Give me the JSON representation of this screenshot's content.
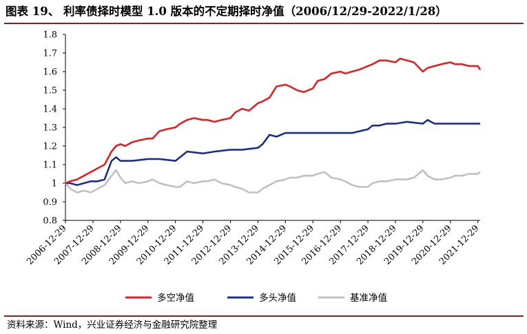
{
  "title": "图表 19、 利率债择时模型 1.0 版本的不定期择时净值（2006/12/29-2022/1/28）",
  "source": "资料来源：Wind，兴业证券经济与金融研究院整理",
  "chart_data": {
    "type": "line",
    "title": "图表 19、 利率债择时模型 1.0 版本的不定期择时净值（2006/12/29-2022/1/28）",
    "xlabel": "",
    "ylabel": "",
    "ylim": [
      0.8,
      1.8
    ],
    "yticks": [
      "0.8",
      "0.9",
      "1",
      "1.1",
      "1.2",
      "1.3",
      "1.4",
      "1.5",
      "1.6",
      "1.7",
      "1.8"
    ],
    "xlim": [
      "2006-12-29",
      "2022-01-28"
    ],
    "xticks": [
      "2006-12-29",
      "2007-12-29",
      "2008-12-29",
      "2009-12-29",
      "2010-12-29",
      "2011-12-29",
      "2012-12-29",
      "2013-12-29",
      "2014-12-29",
      "2015-12-29",
      "2016-12-29",
      "2017-12-29",
      "2018-12-29",
      "2019-12-29",
      "2020-12-29",
      "2021-12-29"
    ],
    "legend_position": "bottom",
    "grid": false,
    "series": [
      {
        "name": "多空净值",
        "color": "#e02020",
        "x": [
          "2006-12-29",
          "2007-03-01",
          "2007-06-01",
          "2007-09-01",
          "2007-12-01",
          "2008-03-01",
          "2008-06-01",
          "2008-09-01",
          "2008-11-01",
          "2008-12-29",
          "2009-03-01",
          "2009-06-01",
          "2009-09-01",
          "2009-12-29",
          "2010-03-01",
          "2010-06-01",
          "2010-09-01",
          "2010-12-29",
          "2011-03-01",
          "2011-06-01",
          "2011-09-01",
          "2011-12-29",
          "2012-03-01",
          "2012-06-01",
          "2012-09-01",
          "2012-12-29",
          "2013-03-01",
          "2013-06-01",
          "2013-09-01",
          "2013-12-29",
          "2014-03-01",
          "2014-06-01",
          "2014-09-01",
          "2014-12-29",
          "2015-03-01",
          "2015-06-01",
          "2015-09-01",
          "2015-12-29",
          "2016-03-01",
          "2016-06-01",
          "2016-09-01",
          "2016-12-29",
          "2017-03-01",
          "2017-06-01",
          "2017-09-01",
          "2017-12-29",
          "2018-03-01",
          "2018-06-01",
          "2018-09-01",
          "2018-12-29",
          "2019-03-01",
          "2019-06-01",
          "2019-09-01",
          "2019-12-29",
          "2020-03-01",
          "2020-06-01",
          "2020-09-01",
          "2020-12-29",
          "2021-03-01",
          "2021-06-01",
          "2021-09-01",
          "2021-12-29",
          "2022-01-28"
        ],
        "y": [
          1.0,
          1.01,
          1.02,
          1.04,
          1.06,
          1.08,
          1.1,
          1.17,
          1.2,
          1.21,
          1.2,
          1.22,
          1.23,
          1.24,
          1.24,
          1.28,
          1.29,
          1.3,
          1.32,
          1.34,
          1.35,
          1.34,
          1.34,
          1.33,
          1.34,
          1.35,
          1.38,
          1.4,
          1.39,
          1.43,
          1.44,
          1.46,
          1.52,
          1.53,
          1.52,
          1.5,
          1.49,
          1.51,
          1.55,
          1.56,
          1.59,
          1.6,
          1.59,
          1.6,
          1.61,
          1.63,
          1.64,
          1.66,
          1.66,
          1.65,
          1.67,
          1.66,
          1.65,
          1.6,
          1.62,
          1.63,
          1.64,
          1.65,
          1.64,
          1.64,
          1.63,
          1.63,
          1.61
        ]
      },
      {
        "name": "多头净值",
        "color": "#1a2f8a",
        "x": [
          "2006-12-29",
          "2007-03-01",
          "2007-06-01",
          "2007-09-01",
          "2007-12-01",
          "2008-03-01",
          "2008-06-01",
          "2008-09-01",
          "2008-11-01",
          "2008-12-29",
          "2009-06-01",
          "2009-12-29",
          "2010-06-01",
          "2010-12-29",
          "2011-06-01",
          "2011-12-29",
          "2012-06-01",
          "2012-12-29",
          "2013-06-01",
          "2013-12-29",
          "2014-03-01",
          "2014-06-01",
          "2014-09-01",
          "2014-12-29",
          "2015-06-01",
          "2015-12-29",
          "2016-06-01",
          "2016-12-29",
          "2017-06-01",
          "2017-12-29",
          "2018-03-01",
          "2018-06-01",
          "2018-09-01",
          "2018-12-29",
          "2019-06-01",
          "2019-12-29",
          "2020-03-01",
          "2020-06-01",
          "2020-12-29",
          "2021-06-01",
          "2021-12-29",
          "2022-01-28"
        ],
        "y": [
          1.0,
          1.0,
          0.99,
          1.0,
          1.01,
          1.01,
          1.02,
          1.12,
          1.14,
          1.12,
          1.12,
          1.13,
          1.13,
          1.12,
          1.17,
          1.16,
          1.17,
          1.18,
          1.18,
          1.19,
          1.21,
          1.26,
          1.25,
          1.27,
          1.27,
          1.27,
          1.27,
          1.27,
          1.27,
          1.29,
          1.31,
          1.31,
          1.32,
          1.32,
          1.33,
          1.32,
          1.34,
          1.32,
          1.32,
          1.32,
          1.32,
          1.32
        ]
      },
      {
        "name": "基准净值",
        "color": "#c0c0c0",
        "x": [
          "2006-12-29",
          "2007-03-01",
          "2007-06-01",
          "2007-09-01",
          "2007-12-01",
          "2008-03-01",
          "2008-06-01",
          "2008-09-01",
          "2008-11-01",
          "2008-12-29",
          "2009-03-01",
          "2009-06-01",
          "2009-09-01",
          "2009-12-29",
          "2010-03-01",
          "2010-06-01",
          "2010-09-01",
          "2010-12-29",
          "2011-03-01",
          "2011-06-01",
          "2011-09-01",
          "2011-12-29",
          "2012-03-01",
          "2012-06-01",
          "2012-09-01",
          "2012-12-29",
          "2013-03-01",
          "2013-06-01",
          "2013-09-01",
          "2013-12-29",
          "2014-03-01",
          "2014-06-01",
          "2014-09-01",
          "2014-12-29",
          "2015-03-01",
          "2015-06-01",
          "2015-09-01",
          "2015-12-29",
          "2016-03-01",
          "2016-06-01",
          "2016-09-01",
          "2016-12-29",
          "2017-03-01",
          "2017-06-01",
          "2017-09-01",
          "2017-12-29",
          "2018-03-01",
          "2018-06-01",
          "2018-09-01",
          "2018-12-29",
          "2019-03-01",
          "2019-06-01",
          "2019-09-01",
          "2019-12-29",
          "2020-03-01",
          "2020-06-01",
          "2020-09-01",
          "2020-12-29",
          "2021-03-01",
          "2021-06-01",
          "2021-09-01",
          "2021-12-29",
          "2022-01-28"
        ],
        "y": [
          1.0,
          0.97,
          0.95,
          0.96,
          0.95,
          0.97,
          0.99,
          1.04,
          1.07,
          1.03,
          1.0,
          1.01,
          1.0,
          1.01,
          1.02,
          1.0,
          0.99,
          0.98,
          0.98,
          1.01,
          1.0,
          1.01,
          1.01,
          1.02,
          1.0,
          0.99,
          0.98,
          0.97,
          0.95,
          0.95,
          0.97,
          0.99,
          1.01,
          1.02,
          1.03,
          1.03,
          1.04,
          1.04,
          1.05,
          1.06,
          1.03,
          1.02,
          1.01,
          0.99,
          0.98,
          0.98,
          1.0,
          1.01,
          1.01,
          1.02,
          1.02,
          1.02,
          1.03,
          1.07,
          1.04,
          1.02,
          1.02,
          1.03,
          1.04,
          1.04,
          1.05,
          1.05,
          1.06
        ]
      }
    ]
  }
}
